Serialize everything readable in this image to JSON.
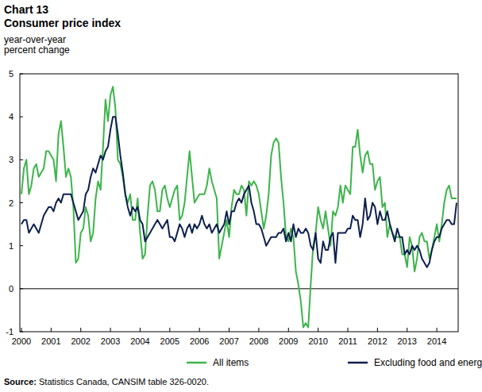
{
  "chart_data": {
    "type": "line",
    "title": "Chart 13",
    "subtitle": "Consumer price index",
    "y_label": "year-over-year\npercent change",
    "source": "Source: Statistics Canada, CANSIM table 326-0020.",
    "legend": "bottom",
    "grid": false,
    "ylim": [
      -1,
      5
    ],
    "yticks": [
      -1,
      0,
      1,
      2,
      3,
      4,
      5
    ],
    "categories": [
      "2000",
      null,
      null,
      null,
      null,
      null,
      null,
      null,
      null,
      null,
      null,
      null,
      "2001",
      null,
      null,
      null,
      null,
      null,
      null,
      null,
      null,
      null,
      null,
      null,
      "2002",
      null,
      null,
      null,
      null,
      null,
      null,
      null,
      null,
      null,
      null,
      null,
      "2003",
      null,
      null,
      null,
      null,
      null,
      null,
      null,
      null,
      null,
      null,
      null,
      "2004",
      null,
      null,
      null,
      null,
      null,
      null,
      null,
      null,
      null,
      null,
      null,
      "2005",
      null,
      null,
      null,
      null,
      null,
      null,
      null,
      null,
      null,
      null,
      null,
      "2006",
      null,
      null,
      null,
      null,
      null,
      null,
      null,
      null,
      null,
      null,
      null,
      "2007",
      null,
      null,
      null,
      null,
      null,
      null,
      null,
      null,
      null,
      null,
      null,
      "2008",
      null,
      null,
      null,
      null,
      null,
      null,
      null,
      null,
      null,
      null,
      null,
      "2009",
      null,
      null,
      null,
      null,
      null,
      null,
      null,
      null,
      null,
      null,
      null,
      "2010",
      null,
      null,
      null,
      null,
      null,
      null,
      null,
      null,
      null,
      null,
      null,
      "2011",
      null,
      null,
      null,
      null,
      null,
      null,
      null,
      null,
      null,
      null,
      null,
      "2012",
      null,
      null,
      null,
      null,
      null,
      null,
      null,
      null,
      null,
      null,
      null,
      "2013",
      null,
      null,
      null,
      null,
      null,
      null,
      null,
      null,
      null,
      null,
      null,
      "2014",
      null,
      null,
      null,
      null,
      null,
      null,
      null,
      null
    ],
    "series": [
      {
        "name": "All items",
        "color": "#3db44b",
        "values": [
          2.2,
          2.8,
          3.0,
          2.2,
          2.4,
          2.8,
          2.9,
          2.6,
          2.7,
          2.8,
          3.2,
          3.2,
          3.1,
          3.0,
          2.5,
          3.6,
          3.9,
          3.3,
          2.6,
          2.8,
          2.6,
          1.9,
          0.6,
          0.7,
          1.3,
          1.4,
          1.9,
          1.7,
          1.1,
          1.3,
          2.1,
          2.5,
          2.3,
          3.3,
          4.4,
          3.9,
          4.5,
          4.7,
          4.2,
          3.0,
          2.9,
          2.6,
          2.2,
          2.0,
          2.2,
          1.6,
          1.6,
          2.1,
          1.3,
          0.7,
          0.8,
          1.7,
          2.4,
          2.5,
          2.3,
          1.8,
          1.8,
          2.3,
          2.4,
          2.1,
          1.9,
          2.1,
          2.3,
          2.4,
          1.6,
          1.7,
          2.0,
          2.6,
          3.2,
          2.6,
          2.0,
          2.1,
          2.2,
          2.2,
          2.2,
          2.4,
          2.8,
          2.5,
          2.3,
          2.1,
          0.7,
          1.0,
          1.3,
          1.6,
          1.2,
          1.9,
          2.3,
          2.2,
          2.2,
          2.4,
          2.3,
          1.7,
          2.5,
          2.4,
          2.5,
          2.4,
          2.2,
          1.8,
          1.4,
          1.7,
          2.2,
          3.1,
          3.4,
          3.5,
          3.4,
          2.6,
          2.0,
          1.2,
          1.1,
          1.4,
          1.2,
          0.4,
          0.1,
          -0.3,
          -0.9,
          -0.8,
          -0.9,
          0.1,
          1.0,
          1.3,
          1.9,
          1.6,
          1.4,
          1.8,
          1.4,
          1.0,
          1.8,
          1.7,
          1.9,
          2.4,
          2.0,
          2.4,
          2.3,
          2.2,
          3.3,
          3.3,
          3.7,
          3.1,
          2.7,
          3.1,
          3.2,
          2.9,
          2.9,
          2.3,
          2.5,
          2.6,
          1.9,
          2.0,
          1.2,
          1.5,
          1.3,
          1.2,
          1.2,
          1.2,
          0.8,
          0.8,
          0.5,
          1.2,
          1.0,
          0.4,
          0.7,
          1.2,
          1.3,
          1.1,
          1.1,
          0.7,
          0.9,
          1.2,
          1.5,
          1.1,
          1.5,
          2.0,
          2.3,
          2.4,
          2.1,
          2.1,
          2.1
        ]
      },
      {
        "name": "Excluding food and energy",
        "color": "#0c1f4d",
        "values": [
          1.5,
          1.6,
          1.6,
          1.3,
          1.4,
          1.5,
          1.4,
          1.3,
          1.5,
          1.7,
          1.8,
          1.9,
          1.9,
          1.8,
          2.0,
          2.1,
          2.0,
          2.2,
          2.2,
          2.2,
          2.2,
          2.0,
          1.8,
          1.6,
          1.7,
          1.8,
          2.2,
          2.3,
          2.6,
          2.8,
          2.7,
          2.9,
          3.1,
          3.0,
          3.2,
          3.3,
          3.7,
          4.0,
          4.0,
          3.6,
          3.1,
          2.7,
          2.2,
          1.9,
          1.7,
          1.9,
          1.8,
          1.9,
          1.6,
          1.5,
          1.1,
          1.2,
          1.3,
          1.4,
          1.5,
          1.6,
          1.5,
          1.4,
          1.5,
          1.6,
          1.2,
          1.2,
          1.1,
          1.3,
          1.5,
          1.4,
          1.2,
          1.4,
          1.5,
          1.3,
          1.5,
          1.4,
          1.5,
          1.7,
          1.5,
          1.4,
          1.5,
          1.3,
          1.4,
          1.5,
          1.3,
          1.4,
          1.5,
          1.8,
          1.5,
          1.8,
          1.8,
          2.0,
          2.1,
          2.0,
          2.2,
          2.3,
          2.4,
          2.0,
          1.8,
          1.5,
          1.5,
          1.4,
          1.2,
          1.0,
          1.1,
          1.2,
          1.2,
          1.2,
          1.3,
          1.3,
          1.4,
          1.1,
          1.3,
          1.1,
          1.5,
          1.2,
          1.4,
          1.3,
          1.3,
          1.4,
          1.3,
          1.0,
          0.9,
          1.3,
          0.7,
          0.6,
          1.1,
          0.9,
          0.9,
          1.2,
          1.3,
          0.6,
          1.3,
          1.3,
          1.3,
          1.3,
          1.4,
          1.4,
          1.7,
          1.6,
          1.6,
          1.2,
          1.5,
          2.1,
          1.6,
          1.7,
          2.0,
          1.9,
          1.5,
          1.8,
          1.6,
          1.6,
          1.8,
          1.5,
          1.3,
          1.1,
          1.4,
          1.2,
          1.2,
          0.8,
          0.9,
          0.8,
          1.0,
          0.9,
          1.0,
          0.9,
          0.7,
          0.6,
          0.5,
          0.6,
          0.9,
          1.1,
          1.2,
          1.2,
          1.4,
          1.5,
          1.6,
          1.6,
          1.5,
          1.5,
          2.0
        ]
      }
    ]
  }
}
